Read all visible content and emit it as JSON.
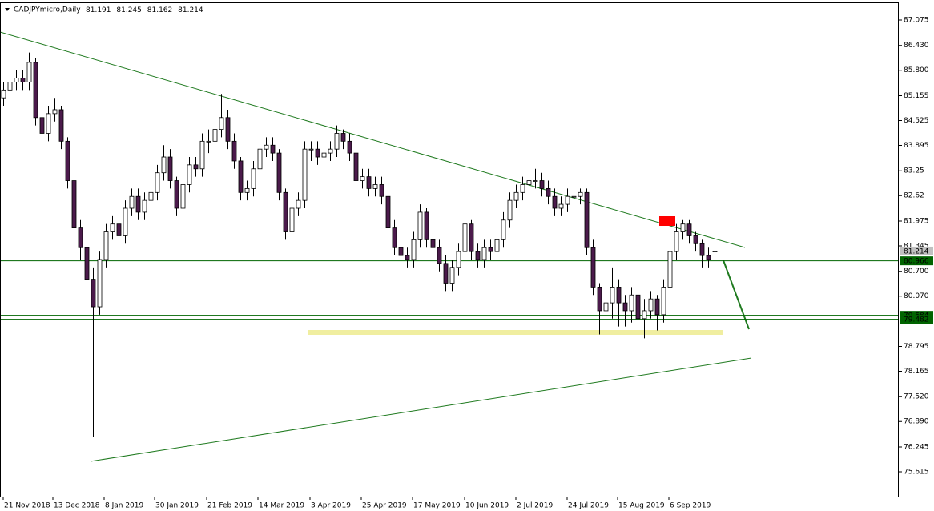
{
  "chart_data": {
    "type": "candlestick",
    "title": "CADJPYmicro,Daily",
    "up_color": "#ffffff",
    "down_color": "#4b1a4b",
    "wick_color": "#000000",
    "x": [
      0,
      2,
      4,
      6,
      8,
      10,
      12,
      14,
      16,
      18,
      20,
      22,
      24,
      26,
      28,
      30,
      32,
      34,
      36,
      38,
      40,
      42,
      44,
      46,
      48,
      50,
      52,
      54,
      56,
      58,
      60,
      62,
      64,
      66,
      68,
      70,
      72,
      74,
      76,
      78,
      80,
      82,
      84,
      86,
      88,
      90,
      92,
      94,
      96,
      98,
      100,
      102,
      104,
      106,
      108,
      110,
      112,
      114,
      116,
      118,
      120,
      122,
      124,
      126,
      128,
      130,
      132,
      134,
      136,
      138,
      140,
      142,
      144,
      146,
      148,
      150,
      152,
      154,
      156,
      158,
      160,
      162,
      164,
      166,
      168,
      170,
      172,
      174,
      176,
      178,
      180,
      182,
      184,
      186,
      188,
      190,
      192,
      194,
      196,
      198,
      200,
      202,
      204,
      206,
      208,
      210,
      212,
      214,
      216,
      218,
      220,
      222
    ],
    "open": [
      85.1,
      85.3,
      85.5,
      85.6,
      85.5,
      86.0,
      84.6,
      84.2,
      84.7,
      84.8,
      84.0,
      83.0,
      81.8,
      81.3,
      80.5,
      79.8,
      81.0,
      81.7,
      81.9,
      81.6,
      82.3,
      82.6,
      82.2,
      82.5,
      82.7,
      83.2,
      83.6,
      83.0,
      82.3,
      82.9,
      83.4,
      83.3,
      84.0,
      84.0,
      84.3,
      84.6,
      84.0,
      83.5,
      82.7,
      82.8,
      83.3,
      83.8,
      83.9,
      83.7,
      82.7,
      81.7,
      82.3,
      82.5,
      83.8,
      83.8,
      83.6,
      83.7,
      83.8,
      84.2,
      84.0,
      83.7,
      83.0,
      83.1,
      82.8,
      82.9,
      82.6,
      81.8,
      81.3,
      81.1,
      81.0,
      81.5,
      82.2,
      81.5,
      81.3,
      80.9,
      80.4,
      80.8,
      81.2,
      81.9,
      81.2,
      81.0,
      81.3,
      81.2,
      81.5,
      82.0,
      82.5,
      82.7,
      82.9,
      83.0,
      83.0,
      82.8,
      82.6,
      82.3,
      82.4,
      82.6,
      82.6,
      82.7,
      81.3,
      80.3,
      79.7,
      79.9,
      80.3,
      79.9,
      79.7,
      80.1,
      79.5,
      79.7,
      80.0,
      79.6,
      80.3,
      81.2,
      81.7,
      81.9,
      81.6,
      81.4,
      81.1,
      81.191
    ],
    "high": [
      85.5,
      85.7,
      85.8,
      85.8,
      86.25,
      86.1,
      84.8,
      84.9,
      85.1,
      84.9,
      84.1,
      83.1,
      82.0,
      81.4,
      80.8,
      81.2,
      81.9,
      82.1,
      82.1,
      82.5,
      82.8,
      82.8,
      82.7,
      82.9,
      83.4,
      83.9,
      83.8,
      83.1,
      83.1,
      83.6,
      83.6,
      84.2,
      84.3,
      84.6,
      85.2,
      84.8,
      84.2,
      83.6,
      83.0,
      83.5,
      84.0,
      84.1,
      84.1,
      83.8,
      82.8,
      82.5,
      82.7,
      84.0,
      84.0,
      84.0,
      83.9,
      84.0,
      84.4,
      84.3,
      84.2,
      83.8,
      83.3,
      83.3,
      83.1,
      83.1,
      82.7,
      82.0,
      81.5,
      81.3,
      81.7,
      82.4,
      82.3,
      81.7,
      81.5,
      81.1,
      81.0,
      81.4,
      82.1,
      82.0,
      81.4,
      81.5,
      81.5,
      81.7,
      82.2,
      82.7,
      82.9,
      83.1,
      83.2,
      83.3,
      83.2,
      83.0,
      82.8,
      82.6,
      82.8,
      82.8,
      82.8,
      82.8,
      81.5,
      80.4,
      80.2,
      80.8,
      80.5,
      80.1,
      80.3,
      80.2,
      80.0,
      80.2,
      80.1,
      80.5,
      81.4,
      81.9,
      82.0,
      82.0,
      81.7,
      81.5,
      81.3,
      81.245
    ],
    "low": [
      84.9,
      85.1,
      85.3,
      85.3,
      85.3,
      84.4,
      83.9,
      84.0,
      84.5,
      83.8,
      82.8,
      81.6,
      81.0,
      80.2,
      76.5,
      79.6,
      80.8,
      81.5,
      81.3,
      81.4,
      82.1,
      82.0,
      82.0,
      82.3,
      82.5,
      83.0,
      82.8,
      82.1,
      82.1,
      82.7,
      83.1,
      83.1,
      83.7,
      83.8,
      84.1,
      83.8,
      83.3,
      82.5,
      82.5,
      82.6,
      83.1,
      83.6,
      83.5,
      82.5,
      81.5,
      81.5,
      82.1,
      82.3,
      83.5,
      83.4,
      83.4,
      83.5,
      83.6,
      83.8,
      83.5,
      82.8,
      82.8,
      82.6,
      82.6,
      82.4,
      81.6,
      81.1,
      80.9,
      80.8,
      80.8,
      81.3,
      81.3,
      81.1,
      80.7,
      80.2,
      80.2,
      80.6,
      81.0,
      81.0,
      80.8,
      80.8,
      81.0,
      81.0,
      81.3,
      81.8,
      82.3,
      82.5,
      82.7,
      82.8,
      82.6,
      82.4,
      82.1,
      82.1,
      82.2,
      82.4,
      82.4,
      81.1,
      80.1,
      79.1,
      79.2,
      79.5,
      79.3,
      79.3,
      79.4,
      78.6,
      79.0,
      79.5,
      79.2,
      79.4,
      80.1,
      81.0,
      81.5,
      81.4,
      81.2,
      80.8,
      80.8,
      81.162
    ],
    "close": [
      85.3,
      85.5,
      85.6,
      85.5,
      86.0,
      84.6,
      84.2,
      84.7,
      84.8,
      84.0,
      83.0,
      81.8,
      81.3,
      80.5,
      79.8,
      81.0,
      81.7,
      81.9,
      81.6,
      82.3,
      82.6,
      82.2,
      82.5,
      82.7,
      83.2,
      83.6,
      83.0,
      82.3,
      82.9,
      83.4,
      83.3,
      84.0,
      84.0,
      84.3,
      84.6,
      84.0,
      83.5,
      82.7,
      82.8,
      83.3,
      83.8,
      83.9,
      83.7,
      82.7,
      81.7,
      82.3,
      82.5,
      83.8,
      83.8,
      83.6,
      83.7,
      83.8,
      84.2,
      84.0,
      83.7,
      83.0,
      83.1,
      82.8,
      82.9,
      82.6,
      81.8,
      81.3,
      81.1,
      81.0,
      81.5,
      82.2,
      81.5,
      81.3,
      80.9,
      80.4,
      80.8,
      81.2,
      81.9,
      81.2,
      81.0,
      81.3,
      81.2,
      81.5,
      82.0,
      82.5,
      82.7,
      82.9,
      83.0,
      83.0,
      82.8,
      82.6,
      82.3,
      82.4,
      82.6,
      82.6,
      82.7,
      81.3,
      80.3,
      79.7,
      79.9,
      80.3,
      79.9,
      79.7,
      80.1,
      79.5,
      79.7,
      80.0,
      79.6,
      80.3,
      81.2,
      81.7,
      81.9,
      81.6,
      81.4,
      81.1,
      81.0,
      81.214
    ],
    "xlim": [
      -1,
      279.5
    ],
    "xticks": [
      {
        "value": 0,
        "label": "21 Nov 2018"
      },
      {
        "value": 15.5,
        "label": "13 Dec 2018"
      },
      {
        "value": 31.5,
        "label": "8 Jan 2019"
      },
      {
        "value": 47.25,
        "label": "30 Jan 2019"
      },
      {
        "value": 63.5,
        "label": "21 Feb 2019"
      },
      {
        "value": 79.5,
        "label": "14 Mar 2019"
      },
      {
        "value": 95.75,
        "label": "3 Apr 2019"
      },
      {
        "value": 111.75,
        "label": "25 Apr 2019"
      },
      {
        "value": 127.75,
        "label": "17 May 2019"
      },
      {
        "value": 144,
        "label": "10 Jun 2019"
      },
      {
        "value": 160,
        "label": "2 Jul 2019"
      },
      {
        "value": 176,
        "label": "24 Jul 2019"
      },
      {
        "value": 191.75,
        "label": "15 Aug 2019"
      },
      {
        "value": 207.75,
        "label": "6 Sep 2019"
      }
    ],
    "ylim": [
      74.985,
      87.522
    ],
    "yticks": [
      87.075,
      {
        "value": 86.43,
        "label": "86.430"
      },
      {
        "value": 85.8,
        "label": "85.800"
      },
      85.155,
      84.525,
      83.895,
      83.25,
      82.62,
      81.975,
      81.345,
      {
        "value": 80.7,
        "label": "80.700"
      },
      {
        "value": 80.07,
        "label": "80.070"
      },
      78.795,
      78.165,
      {
        "value": 77.52,
        "label": "77.520"
      },
      {
        "value": 76.89,
        "label": "76.890"
      },
      76.245,
      75.615
    ],
    "price_levels": [
      {
        "value": 81.214,
        "color": "#c0c0c0"
      },
      {
        "value": 80.966,
        "color": "#006400"
      },
      {
        "value": 79.584,
        "color": "#006400"
      },
      {
        "value": 79.482,
        "color": "#006400"
      }
    ]
  }
}
